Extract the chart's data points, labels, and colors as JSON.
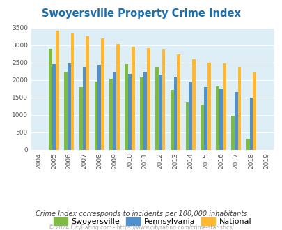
{
  "title": "Swoyersville Property Crime Index",
  "years": [
    2004,
    2005,
    2006,
    2007,
    2008,
    2009,
    2010,
    2011,
    2012,
    2013,
    2014,
    2015,
    2016,
    2017,
    2018,
    2019
  ],
  "swoyersville": [
    null,
    2890,
    2240,
    1800,
    1950,
    2030,
    2450,
    2080,
    2380,
    1710,
    1350,
    1300,
    1820,
    970,
    310,
    null
  ],
  "pennsylvania": [
    null,
    2460,
    2480,
    2370,
    2440,
    2210,
    2180,
    2240,
    2160,
    2070,
    1940,
    1800,
    1750,
    1650,
    1490,
    null
  ],
  "national": [
    null,
    3420,
    3340,
    3260,
    3200,
    3040,
    2950,
    2920,
    2880,
    2730,
    2600,
    2500,
    2480,
    2380,
    2210,
    null
  ],
  "swoyersville_color": "#7dbb42",
  "pennsylvania_color": "#4f90cd",
  "national_color": "#ffb830",
  "plot_bg": "#ddeef6",
  "ylim": [
    0,
    3500
  ],
  "yticks": [
    0,
    500,
    1000,
    1500,
    2000,
    2500,
    3000,
    3500
  ],
  "subtitle": "Crime Index corresponds to incidents per 100,000 inhabitants",
  "footer": "© 2024 CityRating.com - https://www.cityrating.com/crime-statistics/",
  "title_color": "#1a6faf",
  "subtitle_color": "#444444",
  "footer_color": "#aaaaaa",
  "bar_width": 0.22
}
